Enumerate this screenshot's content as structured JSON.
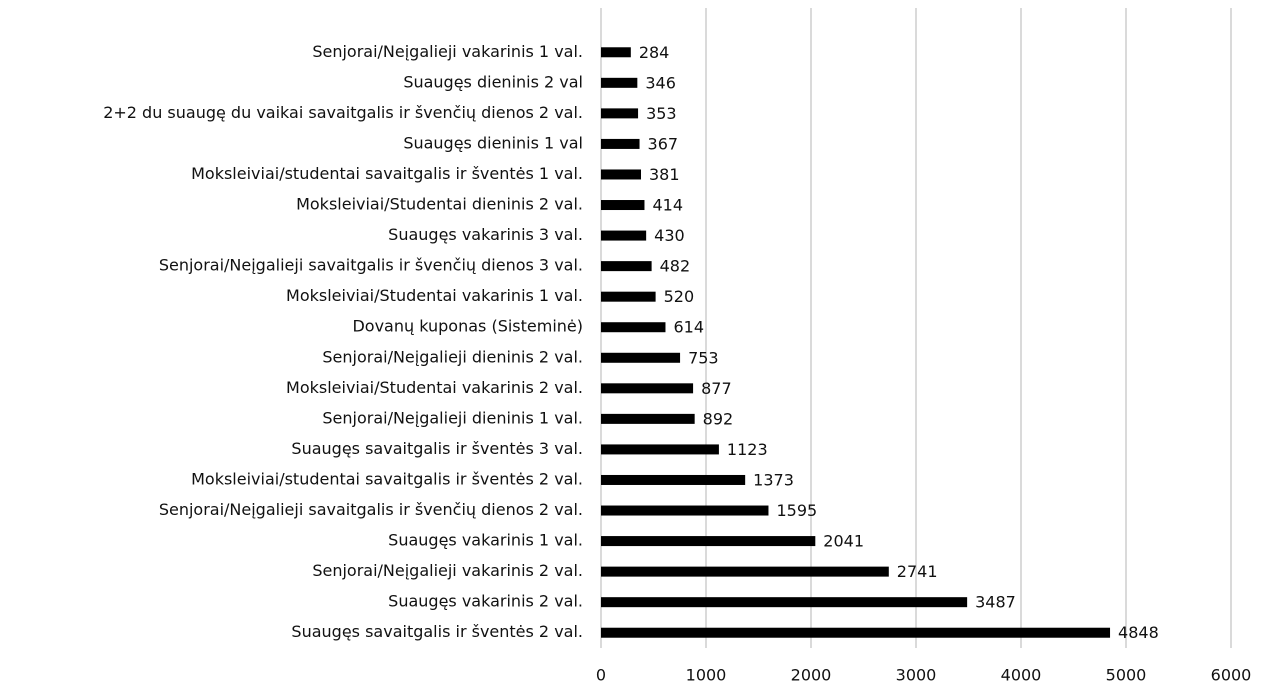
{
  "chart_data": {
    "type": "bar",
    "orientation": "horizontal",
    "categories": [
      "Senjorai/Neįgalieji vakarinis 1 val.",
      "Suaugęs dieninis 2 val",
      "2+2 du suaugę du vaikai savaitgalis ir švenčių dienos 2 val.",
      "Suaugęs dieninis 1 val",
      "Moksleiviai/studentai savaitgalis ir šventės 1 val.",
      "Moksleiviai/Studentai dieninis 2 val.",
      "Suaugęs vakarinis 3 val.",
      "Senjorai/Neįgalieji savaitgalis ir švenčių dienos 3 val.",
      "Moksleiviai/Studentai vakarinis 1 val.",
      "Dovanų kuponas (Sisteminė)",
      "Senjorai/Neįgalieji dieninis 2 val.",
      "Moksleiviai/Studentai vakarinis 2 val.",
      "Senjorai/Neįgalieji dieninis 1 val.",
      "Suaugęs savaitgalis ir šventės 3 val.",
      "Moksleiviai/studentai savaitgalis ir šventės 2 val.",
      "Senjorai/Neįgalieji savaitgalis ir švenčių dienos 2 val.",
      "Suaugęs vakarinis 1 val.",
      "Senjorai/Neįgalieji vakarinis 2 val.",
      "Suaugęs vakarinis 2 val.",
      "Suaugęs savaitgalis ir šventės 2 val."
    ],
    "values": [
      284,
      346,
      353,
      367,
      381,
      414,
      430,
      482,
      520,
      614,
      753,
      877,
      892,
      1123,
      1373,
      1595,
      2041,
      2741,
      3487,
      4848
    ],
    "color": "#000000",
    "xlim": [
      0,
      6000
    ],
    "xticks": [
      0,
      1000,
      2000,
      3000,
      4000,
      5000,
      6000
    ],
    "grid": true
  }
}
